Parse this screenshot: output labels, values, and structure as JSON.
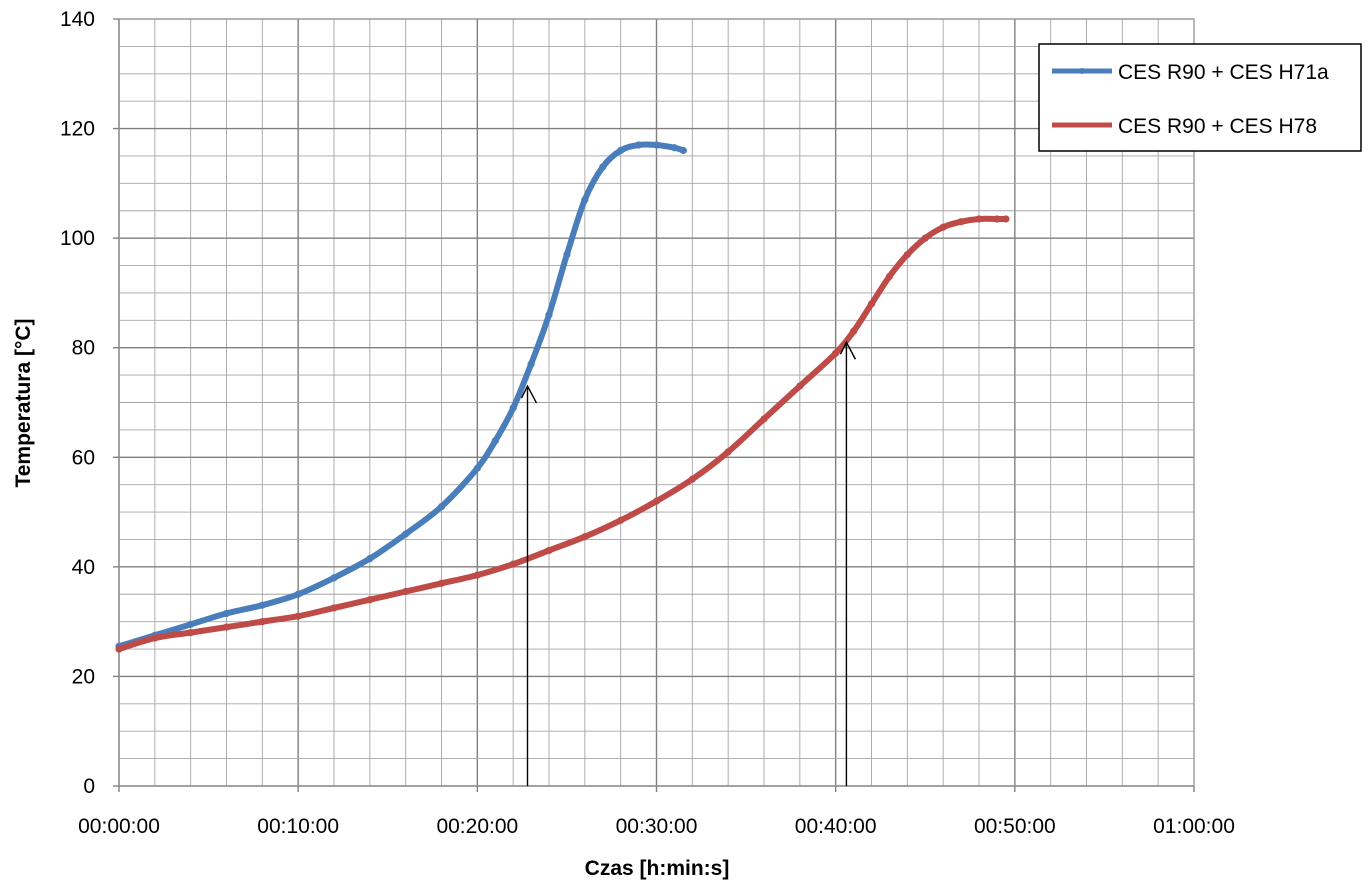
{
  "chart_data": {
    "type": "line",
    "xlabel": "Czas [h:min:s]",
    "ylabel": "Temperatura [°C]",
    "xlim_minutes": [
      0,
      60
    ],
    "ylim": [
      0,
      140
    ],
    "x_ticks": [
      "00:00:00",
      "00:10:00",
      "00:20:00",
      "00:30:00",
      "00:40:00",
      "00:50:00",
      "01:00:00"
    ],
    "y_ticks": [
      "0",
      "20",
      "40",
      "60",
      "80",
      "100",
      "120",
      "140"
    ],
    "grid": true,
    "legend_position": "top-right",
    "series": [
      {
        "name": "CES R90 + CES H71a",
        "color": "#4a7ebb",
        "x_minutes": [
          0,
          2,
          4,
          6,
          8,
          10,
          12,
          14,
          16,
          18,
          20,
          21,
          22,
          23,
          24,
          25,
          26,
          27,
          28,
          29,
          30,
          31,
          31.5
        ],
        "values": [
          25.5,
          27.5,
          29.5,
          31.5,
          33,
          35,
          38,
          41.5,
          46,
          51,
          58,
          63,
          69,
          77,
          86,
          97,
          107,
          113,
          116,
          117,
          117,
          116.5,
          116
        ]
      },
      {
        "name": "CES R90 + CES H78",
        "color": "#be4b48",
        "x_minutes": [
          0,
          2,
          4,
          6,
          8,
          10,
          12,
          14,
          16,
          18,
          20,
          22,
          24,
          26,
          28,
          30,
          32,
          34,
          36,
          38,
          40,
          41,
          42,
          43,
          44,
          45,
          46,
          47,
          48,
          49,
          49.5
        ],
        "values": [
          25,
          27,
          28,
          29,
          30,
          31,
          32.5,
          34,
          35.5,
          37,
          38.5,
          40.5,
          43,
          45.5,
          48.5,
          52,
          56,
          61,
          67,
          73,
          79,
          83,
          88,
          93,
          97,
          100,
          102,
          103,
          103.5,
          103.5,
          103.5
        ]
      }
    ],
    "annotations": [
      {
        "type": "arrow",
        "x_minutes": 22.8,
        "from": 0,
        "to": 73
      },
      {
        "type": "arrow",
        "x_minutes": 40.6,
        "from": 0,
        "to": 81
      }
    ]
  }
}
